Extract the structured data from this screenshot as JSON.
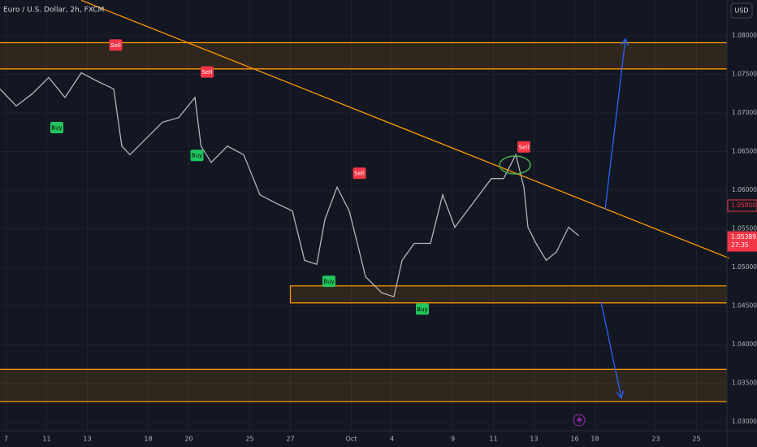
{
  "chart_data": {
    "type": "line",
    "title": "Euro / U.S. Dollar, 2h, FXCM",
    "currency": "USD",
    "xlim": [
      -0.3,
      35.5
    ],
    "ylim": [
      1.02884,
      1.08463
    ],
    "xticks": [
      {
        "value": 0,
        "label": "7"
      },
      {
        "value": 2,
        "label": "11"
      },
      {
        "value": 4,
        "label": "13"
      },
      {
        "value": 7,
        "label": "18"
      },
      {
        "value": 9,
        "label": "20"
      },
      {
        "value": 12,
        "label": "25"
      },
      {
        "value": 14,
        "label": "27"
      },
      {
        "value": 17,
        "label": "Oct"
      },
      {
        "value": 19,
        "label": "4"
      },
      {
        "value": 22,
        "label": "9"
      },
      {
        "value": 24,
        "label": "11"
      },
      {
        "value": 26,
        "label": "13"
      },
      {
        "value": 28,
        "label": "16"
      },
      {
        "value": 29,
        "label": "18"
      },
      {
        "value": 32,
        "label": "23"
      },
      {
        "value": 34,
        "label": "25"
      }
    ],
    "yticks": [
      {
        "value": 1.08,
        "label": "1.08000"
      },
      {
        "value": 1.075,
        "label": "1.07500"
      },
      {
        "value": 1.07,
        "label": "1.07000"
      },
      {
        "value": 1.065,
        "label": "1.06500"
      },
      {
        "value": 1.06,
        "label": "1.06000"
      },
      {
        "value": 1.055,
        "label": "1.05500"
      },
      {
        "value": 1.05,
        "label": "1.05000"
      },
      {
        "value": 1.045,
        "label": "1.04500"
      },
      {
        "value": 1.04,
        "label": "1.04000"
      },
      {
        "value": 1.035,
        "label": "1.03500"
      },
      {
        "value": 1.03,
        "label": "1.03000"
      }
    ],
    "grid": true,
    "x": [
      -0.3,
      0.5,
      1.3,
      2.1,
      2.9,
      3.7,
      4.5,
      5.3,
      5.7,
      6.1,
      6.9,
      7.7,
      8.5,
      9.3,
      9.6,
      10.1,
      10.9,
      11.7,
      12.5,
      13.3,
      14.1,
      14.7,
      15.3,
      15.7,
      16.3,
      16.9,
      17.3,
      17.7,
      18.5,
      19.1,
      19.5,
      20.1,
      20.9,
      21.5,
      22.1,
      22.7,
      23.3,
      23.9,
      24.5,
      25.1,
      25.5,
      25.7,
      26.1,
      26.6,
      27.1,
      27.7,
      28.2
    ],
    "series": [
      {
        "color": "#b2b5be",
        "values": [
          1.0731,
          1.0709,
          1.0725,
          1.0746,
          1.072,
          1.0752,
          1.0741,
          1.0731,
          1.0657,
          1.0646,
          1.0667,
          1.0688,
          1.0694,
          1.072,
          1.0657,
          1.0636,
          1.0657,
          1.0646,
          1.0594,
          1.0583,
          1.0573,
          1.0509,
          1.0504,
          1.0562,
          1.0604,
          1.0573,
          1.0531,
          1.0488,
          1.0467,
          1.0462,
          1.0509,
          1.0531,
          1.0531,
          1.0594,
          1.0552,
          1.0573,
          1.0594,
          1.0615,
          1.0615,
          1.0646,
          1.0604,
          1.0552,
          1.0531,
          1.0509,
          1.052,
          1.0552,
          1.0541
        ]
      }
    ],
    "zones": [
      {
        "top": 1.0791,
        "bottom": 1.0757
      },
      {
        "top": 1.0476,
        "bottom": 1.0454
      },
      {
        "top": 1.0368,
        "bottom": 1.0326
      }
    ],
    "trendline": {
      "x": [
        3.7,
        35.6
      ],
      "y": [
        1.0846,
        1.0512
      ]
    },
    "arrows": [
      {
        "x": [
          29.5,
          30.5
        ],
        "y": [
          1.0575,
          1.0796
        ]
      },
      {
        "x": [
          29.3,
          30.3
        ],
        "y": [
          1.0455,
          1.0331
        ]
      }
    ],
    "signals": [
      {
        "text": "Sell",
        "x": 5.4,
        "y": 1.0788
      },
      {
        "text": "Sell",
        "x": 9.9,
        "y": 1.0753
      },
      {
        "text": "Sell",
        "x": 17.4,
        "y": 1.0622
      },
      {
        "text": "Sell",
        "x": 25.5,
        "y": 1.0656
      },
      {
        "text": "Buy",
        "x": 2.5,
        "y": 1.0681
      },
      {
        "text": "Buy",
        "x": 9.4,
        "y": 1.0645
      },
      {
        "text": "Buy",
        "x": 15.9,
        "y": 1.0482
      },
      {
        "text": "Buy",
        "x": 20.5,
        "y": 1.0446
      }
    ],
    "price_tags": [
      {
        "value": 1.058,
        "label": "1.05800"
      },
      {
        "value": 1.05389,
        "label": "1.05389"
      }
    ],
    "countdown": "27:35"
  }
}
